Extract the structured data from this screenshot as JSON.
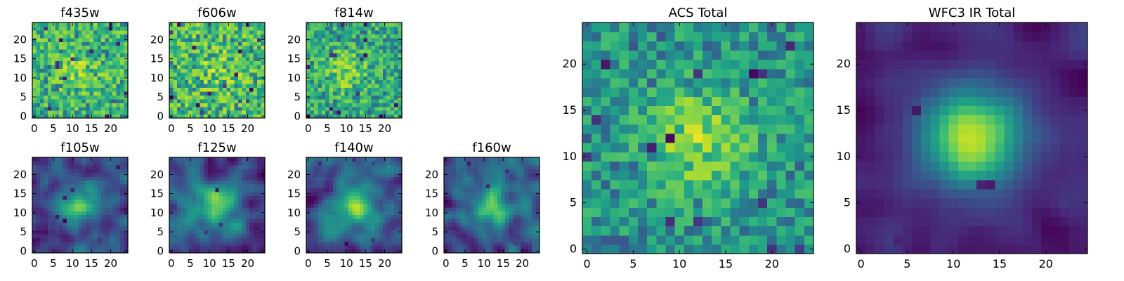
{
  "chart_data": [
    {
      "id": "f435w",
      "type": "heatmap",
      "title": "f435w",
      "grid_size": [
        25,
        25
      ],
      "xlim": [
        -0.5,
        24.5
      ],
      "ylim": [
        -0.5,
        24.5
      ],
      "xticks": [
        0,
        5,
        10,
        15,
        20
      ],
      "yticks": [
        0,
        5,
        10,
        15,
        20
      ],
      "colormap": "viridis",
      "texture": "noise",
      "center": [
        12,
        12
      ],
      "peak_strength": 0.15,
      "seed": 11
    },
    {
      "id": "f606w",
      "type": "heatmap",
      "title": "f606w",
      "grid_size": [
        25,
        25
      ],
      "xlim": [
        -0.5,
        24.5
      ],
      "ylim": [
        -0.5,
        24.5
      ],
      "xticks": [
        0,
        5,
        10,
        15,
        20
      ],
      "yticks": [
        0,
        5,
        10,
        15,
        20
      ],
      "colormap": "viridis",
      "texture": "noise",
      "center": [
        12,
        12
      ],
      "peak_strength": 0.1,
      "seed": 23
    },
    {
      "id": "f814w",
      "type": "heatmap",
      "title": "f814w",
      "grid_size": [
        25,
        25
      ],
      "xlim": [
        -0.5,
        24.5
      ],
      "ylim": [
        -0.5,
        24.5
      ],
      "xticks": [
        0,
        5,
        10,
        15,
        20
      ],
      "yticks": [
        0,
        5,
        10,
        15,
        20
      ],
      "colormap": "viridis",
      "texture": "noise",
      "center": [
        10,
        12
      ],
      "peak_strength": 0.2,
      "seed": 37
    },
    {
      "id": "f105w",
      "type": "heatmap",
      "title": "f105w",
      "grid_size": [
        25,
        25
      ],
      "xlim": [
        -0.5,
        24.5
      ],
      "ylim": [
        -0.5,
        24.5
      ],
      "xticks": [
        0,
        5,
        10,
        15,
        20
      ],
      "yticks": [
        0,
        5,
        10,
        15,
        20
      ],
      "colormap": "viridis",
      "texture": "smooth",
      "center": [
        12,
        12
      ],
      "peak_strength": 0.55,
      "seed": 41
    },
    {
      "id": "f125w",
      "type": "heatmap",
      "title": "f125w",
      "grid_size": [
        25,
        25
      ],
      "xlim": [
        -0.5,
        24.5
      ],
      "ylim": [
        -0.5,
        24.5
      ],
      "xticks": [
        0,
        5,
        10,
        15,
        20
      ],
      "yticks": [
        0,
        5,
        10,
        15,
        20
      ],
      "colormap": "viridis",
      "texture": "smooth",
      "center": [
        12,
        12
      ],
      "peak_strength": 0.5,
      "seed": 53
    },
    {
      "id": "f140w",
      "type": "heatmap",
      "title": "f140w",
      "grid_size": [
        25,
        25
      ],
      "xlim": [
        -0.5,
        24.5
      ],
      "ylim": [
        -0.5,
        24.5
      ],
      "xticks": [
        0,
        5,
        10,
        15,
        20
      ],
      "yticks": [
        0,
        5,
        10,
        15,
        20
      ],
      "colormap": "viridis",
      "texture": "smooth",
      "center": [
        12,
        12
      ],
      "peak_strength": 0.5,
      "seed": 67
    },
    {
      "id": "f160w",
      "type": "heatmap",
      "title": "f160w",
      "grid_size": [
        25,
        25
      ],
      "xlim": [
        -0.5,
        24.5
      ],
      "ylim": [
        -0.5,
        24.5
      ],
      "xticks": [
        0,
        5,
        10,
        15,
        20
      ],
      "yticks": [
        0,
        5,
        10,
        15,
        20
      ],
      "colormap": "viridis",
      "texture": "smooth",
      "center": [
        12,
        12
      ],
      "peak_strength": 0.5,
      "seed": 79
    },
    {
      "id": "acs-total",
      "type": "heatmap",
      "title": "ACS Total",
      "grid_size": [
        25,
        25
      ],
      "xlim": [
        -0.5,
        24.5
      ],
      "ylim": [
        -0.5,
        24.5
      ],
      "xticks": [
        0,
        5,
        10,
        15,
        20
      ],
      "yticks": [
        0,
        5,
        10,
        15,
        20
      ],
      "colormap": "viridis",
      "texture": "noise",
      "center": [
        12,
        12
      ],
      "peak_strength": 0.3,
      "seed": 97
    },
    {
      "id": "wfc3-ir-total",
      "type": "heatmap",
      "title": "WFC3 IR Total",
      "grid_size": [
        25,
        25
      ],
      "xlim": [
        -0.5,
        24.5
      ],
      "ylim": [
        -0.5,
        24.5
      ],
      "xticks": [
        0,
        5,
        10,
        15,
        20
      ],
      "yticks": [
        0,
        5,
        10,
        15,
        20
      ],
      "colormap": "viridis",
      "texture": "smooth",
      "center": [
        12,
        12
      ],
      "peak_strength": 0.8,
      "seed": 113
    }
  ]
}
